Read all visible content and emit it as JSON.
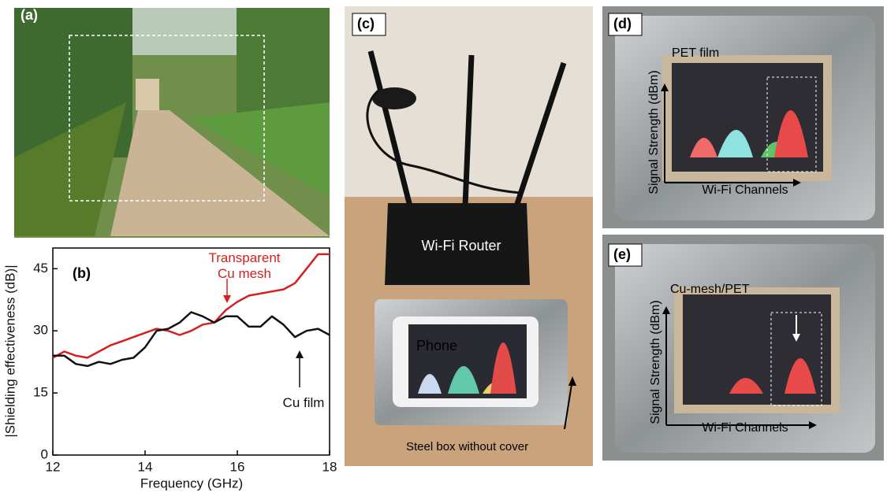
{
  "chart_data": {
    "type": "line",
    "title": "(b)",
    "x_label": "Frequency (GHz)",
    "y_label": "|Shielding effectiveness (dB)|",
    "x": [
      12,
      12.25,
      12.5,
      12.75,
      13,
      13.25,
      13.5,
      13.75,
      14,
      14.25,
      14.5,
      14.75,
      15,
      15.25,
      15.5,
      15.75,
      16,
      16.25,
      16.5,
      16.75,
      17,
      17.25,
      17.5,
      17.75,
      18
    ],
    "series": [
      {
        "name": "Transparent Cu mesh",
        "color": "#d62020",
        "values": [
          23.5,
          25,
          24,
          23.5,
          25,
          26.5,
          27.5,
          28.5,
          29.5,
          30.5,
          30,
          29,
          30,
          31.5,
          32,
          35,
          37,
          38.5,
          39,
          39.5,
          40,
          41.5,
          45,
          48.5,
          48.5
        ]
      },
      {
        "name": "Cu film",
        "color": "#111111",
        "values": [
          24,
          24,
          22,
          21.5,
          22.5,
          22,
          23,
          23.5,
          26,
          30,
          30.5,
          32,
          34.5,
          33.5,
          32,
          33.5,
          33.5,
          31,
          31,
          33.5,
          31.5,
          28.5,
          30,
          30.5,
          29
        ]
      }
    ],
    "xlim": [
      12,
      18
    ],
    "xticks": [
      12,
      14,
      16,
      18
    ],
    "ylim": [
      0,
      50
    ],
    "yticks": [
      0,
      15,
      30,
      45
    ]
  },
  "photos": {
    "a": {
      "label": "(a)"
    },
    "c": {
      "label": "(c)",
      "router": "Wi-Fi Router",
      "phone": "Phone",
      "box": "Steel box without cover"
    },
    "d": {
      "label": "(d)",
      "film": "PET film",
      "y_axis": "Signal Strength (dBm)",
      "x_axis": "Wi-Fi Channels"
    },
    "e": {
      "label": "(e)",
      "film": "Cu-mesh/PET",
      "y_axis": "Signal Strength (dBm)",
      "x_axis": "Wi-Fi Channels"
    }
  }
}
